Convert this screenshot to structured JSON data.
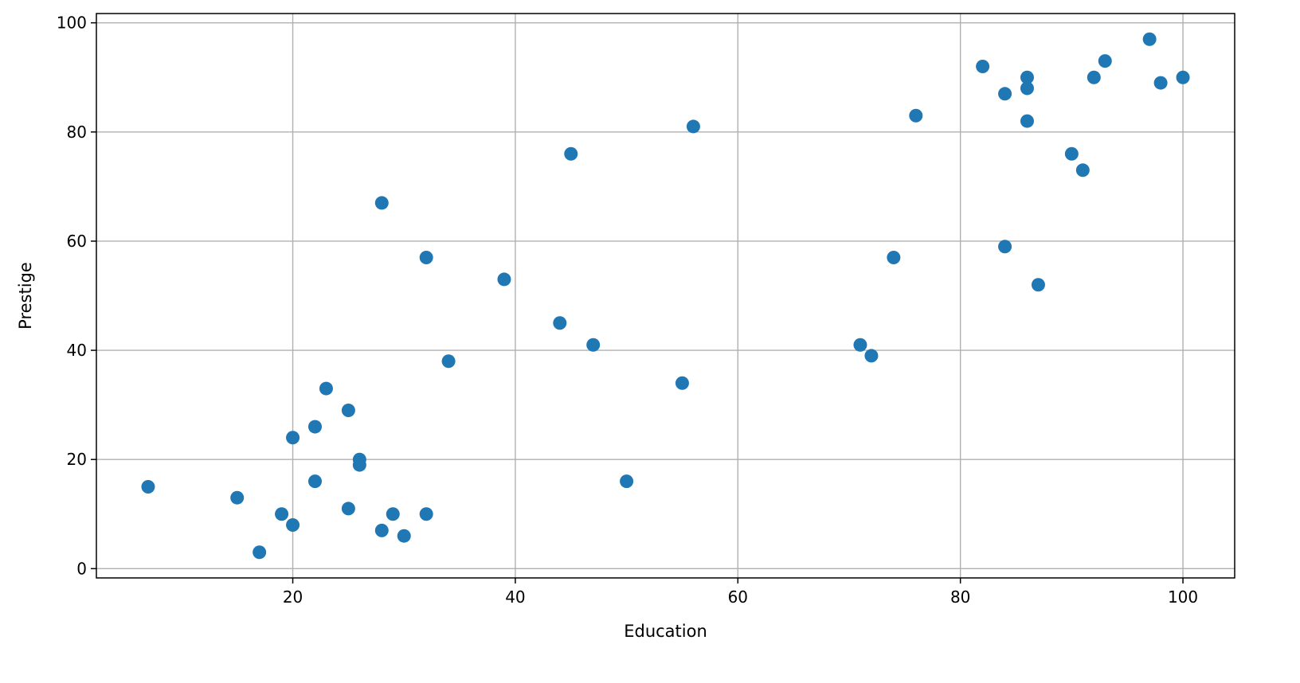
{
  "chart_data": {
    "type": "scatter",
    "title": "",
    "xlabel": "Education",
    "ylabel": "Prestige",
    "xlim": [
      2.35,
      104.65
    ],
    "ylim": [
      -1.7,
      101.7
    ],
    "xticks": [
      20,
      40,
      60,
      80,
      100
    ],
    "yticks": [
      0,
      20,
      40,
      60,
      80,
      100
    ],
    "grid": true,
    "color": "#1f77b4",
    "x": [
      86,
      76,
      92,
      90,
      86,
      84,
      93,
      100,
      87,
      86,
      74,
      98,
      97,
      84,
      91,
      34,
      45,
      56,
      44,
      82,
      72,
      55,
      71,
      50,
      23,
      39,
      28,
      32,
      22,
      25,
      29,
      7,
      26,
      19,
      15,
      20,
      26,
      28,
      17,
      22,
      30,
      25,
      20,
      47,
      32
    ],
    "y": [
      82,
      83,
      90,
      76,
      90,
      87,
      93,
      90,
      52,
      88,
      57,
      89,
      97,
      59,
      73,
      38,
      76,
      81,
      45,
      92,
      39,
      34,
      41,
      16,
      33,
      53,
      67,
      57,
      26,
      29,
      10,
      15,
      19,
      10,
      13,
      24,
      20,
      7,
      3,
      16,
      6,
      11,
      8,
      41,
      10
    ]
  }
}
